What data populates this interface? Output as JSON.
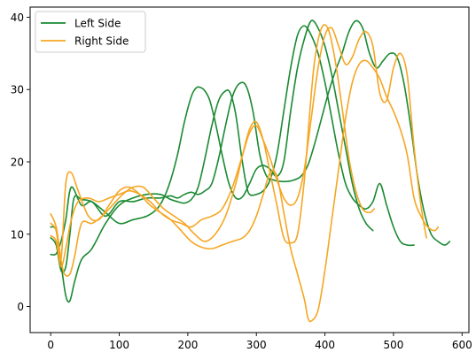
{
  "chart_data": {
    "type": "line",
    "title": "",
    "xlabel": "",
    "ylabel": "",
    "xlim": [
      -30,
      610
    ],
    "ylim": [
      -3.6,
      41.4
    ],
    "xticks": [
      0,
      100,
      200,
      300,
      400,
      500,
      600
    ],
    "yticks": [
      0,
      10,
      20,
      30,
      40
    ],
    "grid": false,
    "legend_position": "top-left",
    "legend": [
      {
        "label": "Left Side",
        "color": "#1a8a32"
      },
      {
        "label": "Right Side",
        "color": "#f5a623"
      }
    ],
    "series": [
      {
        "group": "Left Side",
        "color": "#1a8a32",
        "x": [
          0,
          8,
          15,
          22,
          28,
          34,
          45,
          60,
          80,
          100,
          120,
          140,
          155,
          165,
          175,
          185,
          195,
          205,
          212,
          218,
          225,
          232,
          240,
          250,
          260,
          270,
          280,
          290,
          300,
          310,
          320,
          330,
          340,
          350,
          360,
          370,
          380,
          390,
          400,
          410,
          420,
          430,
          440,
          450,
          460,
          470
        ],
        "y": [
          9.5,
          8.5,
          5.0,
          5.5,
          10.0,
          15.0,
          14.8,
          14.5,
          13.0,
          11.5,
          12.0,
          12.5,
          13.5,
          15.0,
          17.5,
          21.0,
          25.5,
          29.0,
          30.2,
          30.3,
          29.8,
          28.5,
          25.5,
          21.0,
          17.0,
          15.0,
          15.2,
          17.0,
          19.0,
          19.5,
          19.0,
          18.0,
          20.0,
          27.0,
          33.0,
          37.0,
          39.5,
          38.5,
          36.0,
          32.0,
          27.0,
          22.0,
          17.0,
          13.5,
          11.5,
          10.5
        ]
      },
      {
        "group": "Left Side",
        "color": "#1a8a32",
        "x": [
          0,
          8,
          15,
          22,
          28,
          35,
          45,
          60,
          80,
          100,
          120,
          140,
          160,
          175,
          185,
          195,
          205,
          215,
          225,
          235,
          245,
          255,
          262,
          270,
          278,
          285,
          290,
          300,
          310,
          320,
          330,
          340,
          350,
          360,
          370,
          380,
          390,
          400,
          410,
          420,
          430,
          440,
          450,
          460,
          470,
          480,
          490,
          500,
          510,
          520,
          530
        ],
        "y": [
          11.0,
          10.5,
          6.0,
          1.5,
          0.8,
          3.5,
          6.5,
          8.0,
          11.5,
          14.0,
          15.0,
          15.5,
          15.5,
          14.8,
          14.5,
          14.3,
          14.8,
          16.5,
          20.5,
          25.0,
          28.5,
          29.8,
          29.5,
          26.5,
          21.0,
          17.0,
          15.5,
          15.5,
          16.0,
          17.5,
          21.0,
          27.0,
          33.0,
          37.5,
          38.8,
          37.5,
          35.0,
          31.0,
          26.0,
          21.0,
          17.0,
          15.0,
          14.0,
          13.5,
          14.5,
          17.0,
          14.0,
          11.0,
          9.0,
          8.5,
          8.5
        ]
      },
      {
        "group": "Left Side",
        "color": "#1a8a32",
        "x": [
          0,
          8,
          15,
          22,
          30,
          45,
          60,
          80,
          100,
          120,
          140,
          160,
          175,
          185,
          195,
          205,
          215,
          225,
          235,
          245,
          255,
          265,
          275,
          285,
          295,
          305,
          315,
          325,
          335,
          345,
          355,
          365,
          375,
          385,
          395,
          405,
          415,
          425,
          435,
          445,
          455,
          465,
          475,
          485,
          495,
          505,
          515,
          525,
          535,
          545,
          555,
          565,
          575,
          582
        ],
        "y": [
          7.2,
          7.3,
          9.0,
          12.0,
          16.5,
          14.0,
          14.5,
          12.5,
          14.5,
          14.5,
          15.0,
          15.0,
          15.3,
          15.0,
          15.5,
          15.8,
          15.5,
          16.0,
          17.0,
          20.5,
          25.0,
          29.0,
          30.8,
          30.5,
          27.0,
          21.0,
          18.0,
          17.5,
          17.3,
          17.3,
          17.5,
          18.0,
          19.5,
          22.5,
          26.0,
          29.5,
          32.5,
          35.0,
          38.0,
          39.5,
          38.5,
          35.0,
          33.0,
          34.0,
          35.0,
          34.5,
          31.0,
          25.0,
          18.0,
          13.0,
          10.0,
          9.0,
          8.5,
          9.0
        ]
      },
      {
        "group": "Right Side",
        "color": "#f5a623",
        "x": [
          0,
          8,
          15,
          20,
          28,
          35,
          45,
          60,
          75,
          90,
          105,
          120,
          135,
          150,
          165,
          180,
          195,
          210,
          225,
          240,
          255,
          270,
          280,
          290,
          300,
          310,
          320,
          330,
          340,
          350,
          360,
          370,
          378,
          385,
          395,
          405,
          415,
          425,
          435,
          445,
          455,
          465,
          472
        ],
        "y": [
          12.8,
          11.0,
          6.5,
          4.5,
          4.5,
          7.0,
          11.5,
          11.5,
          12.5,
          14.0,
          15.5,
          16.5,
          16.5,
          15.0,
          13.5,
          12.5,
          11.5,
          10.0,
          9.0,
          10.0,
          12.5,
          17.0,
          21.0,
          24.5,
          25.5,
          23.0,
          18.5,
          14.0,
          9.5,
          8.8,
          10.0,
          17.5,
          27.0,
          34.0,
          38.5,
          38.3,
          34.0,
          27.5,
          20.5,
          16.0,
          13.5,
          13.0,
          13.5
        ]
      },
      {
        "group": "Right Side",
        "color": "#f5a623",
        "x": [
          0,
          8,
          15,
          22,
          30,
          40,
          55,
          70,
          85,
          100,
          115,
          130,
          145,
          160,
          175,
          190,
          205,
          220,
          235,
          250,
          265,
          280,
          290,
          300,
          310,
          320,
          330,
          340,
          350,
          360,
          370,
          375,
          380,
          390,
          400,
          410,
          420,
          430,
          440,
          450,
          460,
          470,
          480,
          490,
          500,
          510,
          520,
          530,
          540,
          550,
          560,
          565
        ],
        "y": [
          11.5,
          10.5,
          6.5,
          17.0,
          18.5,
          16.0,
          12.5,
          12.0,
          14.0,
          16.0,
          16.5,
          15.5,
          14.0,
          13.0,
          12.0,
          10.5,
          9.0,
          8.2,
          8.0,
          8.5,
          9.0,
          9.5,
          10.5,
          12.5,
          15.5,
          18.5,
          18.0,
          13.0,
          8.0,
          4.5,
          1.0,
          -1.5,
          -2.0,
          -0.5,
          5.0,
          12.0,
          19.0,
          26.0,
          31.0,
          33.5,
          34.0,
          33.0,
          31.5,
          29.0,
          27.0,
          24.5,
          21.0,
          15.0,
          12.5,
          11.0,
          10.5,
          11.0
        ]
      },
      {
        "group": "Right Side",
        "color": "#f5a623",
        "x": [
          0,
          8,
          15,
          22,
          30,
          40,
          55,
          70,
          85,
          100,
          115,
          130,
          145,
          160,
          175,
          190,
          205,
          220,
          235,
          250,
          265,
          280,
          290,
          300,
          310,
          320,
          330,
          340,
          350,
          360,
          370,
          380,
          390,
          400,
          410,
          420,
          430,
          440,
          450,
          460,
          470,
          480,
          490,
          500,
          510,
          520,
          530,
          540,
          548
        ],
        "y": [
          9.8,
          9.0,
          5.5,
          8.0,
          12.0,
          14.5,
          15.0,
          14.5,
          15.0,
          15.5,
          16.0,
          15.5,
          14.5,
          13.0,
          12.0,
          11.5,
          11.0,
          12.0,
          12.5,
          13.5,
          16.5,
          21.0,
          24.0,
          25.0,
          23.0,
          20.5,
          17.5,
          15.0,
          14.0,
          15.0,
          19.0,
          26.0,
          33.0,
          37.5,
          38.5,
          36.0,
          33.5,
          34.5,
          37.0,
          38.0,
          36.0,
          29.5,
          28.5,
          33.0,
          35.0,
          32.0,
          22.0,
          14.0,
          9.5
        ]
      }
    ]
  }
}
